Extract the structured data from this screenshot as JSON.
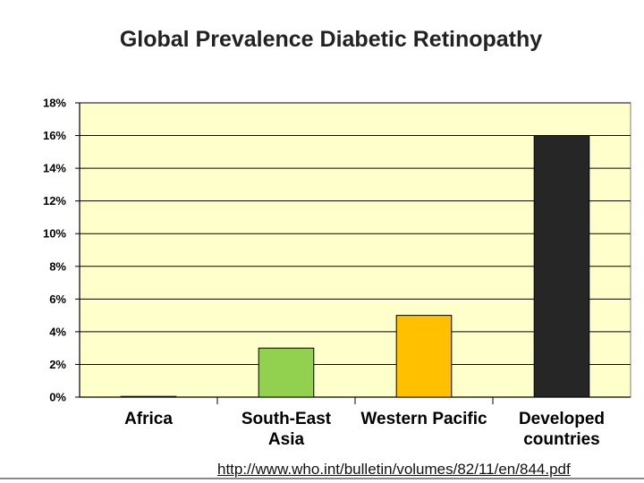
{
  "slide": {
    "title": "Global Prevalence Diabetic Retinopathy",
    "source_url": "http://www.who.int/bulletin/volumes/82/11/en/844.pdf"
  },
  "chart_data": {
    "type": "bar",
    "title": "Global Prevalence Diabetic Retinopathy",
    "categories": [
      [
        "Africa"
      ],
      [
        "South-East",
        "Asia"
      ],
      [
        "Western Pacific"
      ],
      [
        "Developed",
        "countries"
      ]
    ],
    "values": [
      0,
      3,
      5,
      16
    ],
    "bar_colors": [
      "#92D050",
      "#92D050",
      "#FFC000",
      "#262626"
    ],
    "ylim": [
      0,
      18
    ],
    "y_ticks": [
      0,
      2,
      4,
      6,
      8,
      10,
      12,
      14,
      16,
      18
    ],
    "y_tick_format": "percent",
    "grid": true,
    "plot_background": "#FFFFCC",
    "xlabel": "",
    "ylabel": ""
  }
}
